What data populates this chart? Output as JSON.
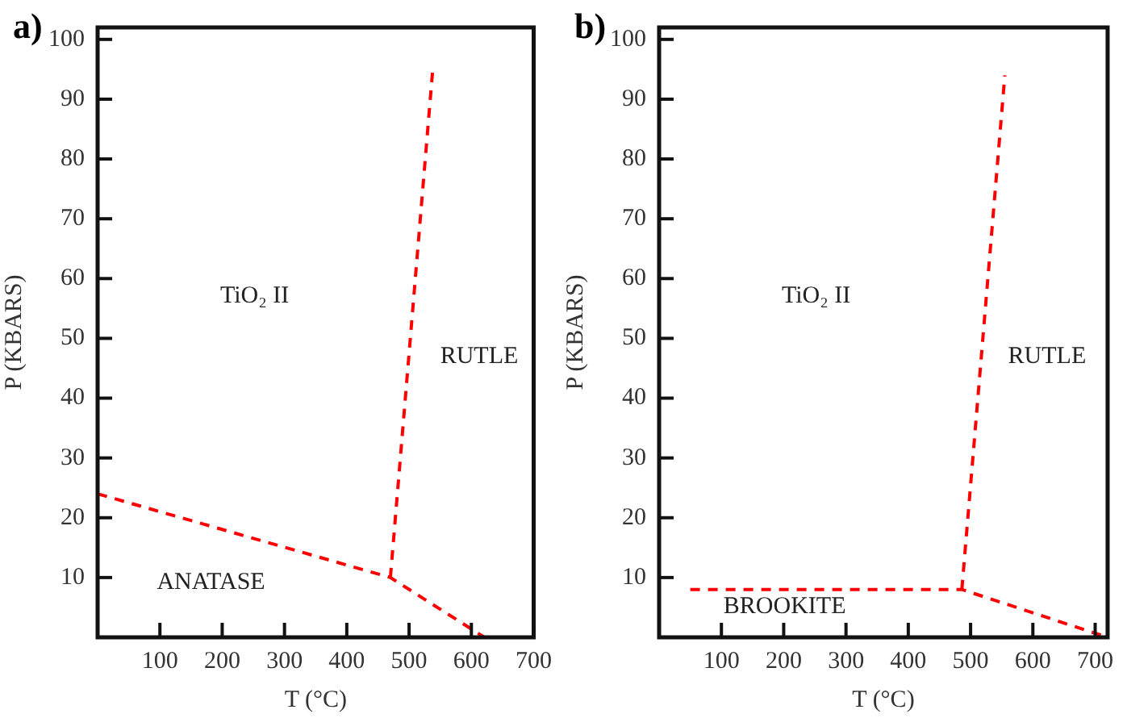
{
  "chart_data": [
    {
      "type": "line",
      "title": "a)",
      "xlabel": "T (°C)",
      "ylabel": "P (KBARS)",
      "xlim": [
        0,
        700
      ],
      "ylim": [
        0,
        102
      ],
      "xticks": [
        100,
        200,
        300,
        400,
        500,
        600,
        700
      ],
      "yticks": [
        10,
        20,
        30,
        40,
        50,
        60,
        70,
        80,
        90,
        100
      ],
      "grid": false,
      "legend": false,
      "line_style": "dashed",
      "marker": "none",
      "series": [
        {
          "color": "#ff0000",
          "x": [
            0,
            470,
            621
          ],
          "values": [
            24,
            10,
            0
          ]
        },
        {
          "color": "#ff0000",
          "x": [
            470,
            538
          ],
          "values": [
            10,
            95
          ]
        }
      ],
      "annotations": [
        "TiO₂ II",
        "RUTLE",
        "ANATASE"
      ]
    },
    {
      "type": "line",
      "title": "b)",
      "xlabel": "T (°C)",
      "ylabel": "P (KBARS)",
      "xlim": [
        0,
        720
      ],
      "ylim": [
        0,
        102
      ],
      "xticks": [
        100,
        200,
        300,
        400,
        500,
        600,
        700
      ],
      "yticks": [
        10,
        20,
        30,
        40,
        50,
        60,
        70,
        80,
        90,
        100
      ],
      "grid": false,
      "legend": false,
      "line_style": "dashed",
      "marker": "none",
      "series": [
        {
          "color": "#ff0000",
          "x": [
            50,
            486,
            720
          ],
          "values": [
            8,
            8,
            0
          ]
        },
        {
          "color": "#ff0000",
          "x": [
            486,
            555
          ],
          "values": [
            8,
            94
          ]
        }
      ],
      "annotations": [
        "TiO₂ II",
        "RUTLE",
        "BROOKITE"
      ]
    }
  ]
}
